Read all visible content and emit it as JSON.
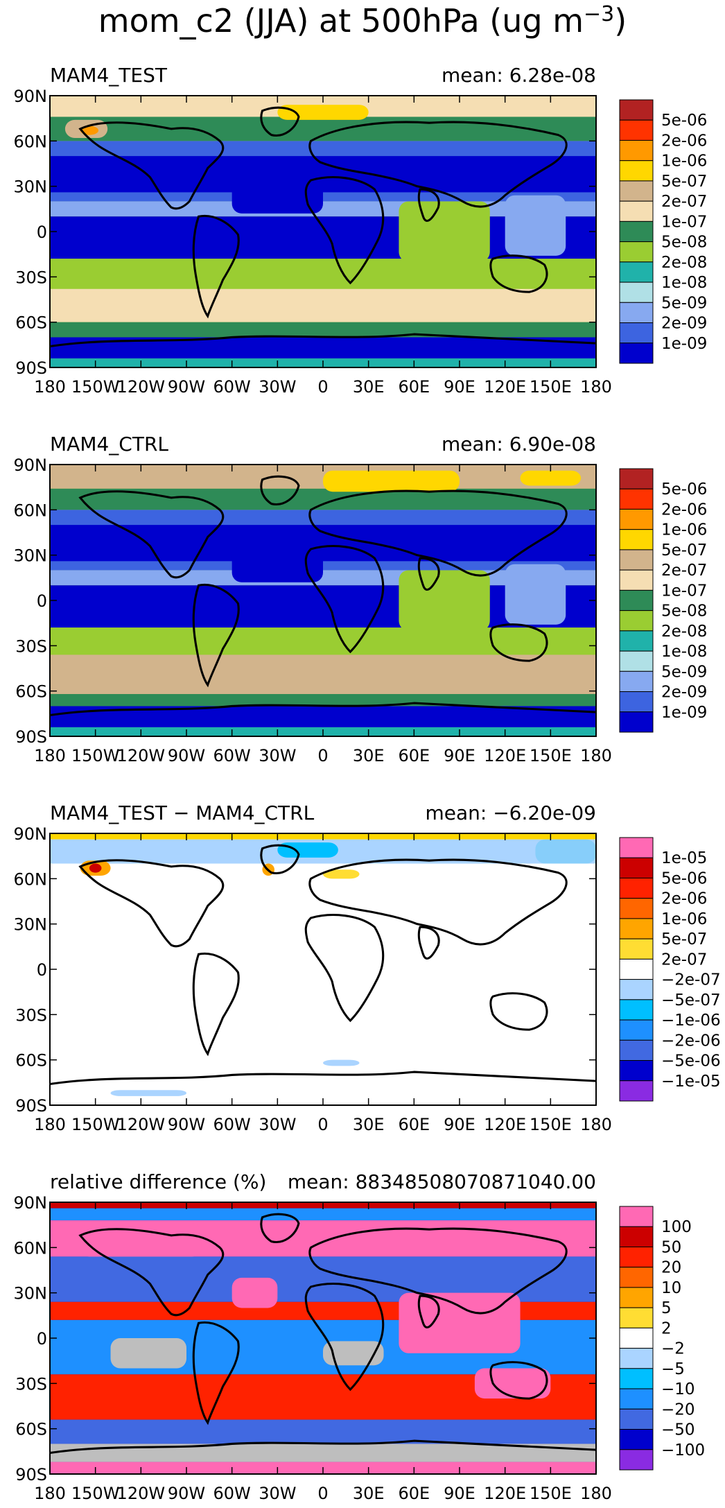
{
  "chart_data": {
    "type": "contour-map",
    "title": "mom_c2 (JJA) at 500hPa (ug m",
    "title_exponent": "−3",
    "title_close": ")",
    "x_ticks": [
      "180",
      "150W",
      "120W",
      "90W",
      "60W",
      "30W",
      "0",
      "30E",
      "60E",
      "90E",
      "120E",
      "150E",
      "180"
    ],
    "y_ticks": [
      "90N",
      "60N",
      "30N",
      "0",
      "30S",
      "60S",
      "90S"
    ],
    "panels": [
      {
        "name": "MAM4_TEST",
        "title_left": "MAM4_TEST",
        "title_right": "mean: 6.28e-08",
        "colorbar": {
          "colors": [
            "#b22222",
            "#ff3300",
            "#ff9900",
            "#ffd700",
            "#d2b48c",
            "#f5deb3",
            "#2e8b57",
            "#9acd32",
            "#20b2aa",
            "#b0e0e6",
            "#87a9f0",
            "#3d64e0",
            "#0000cd"
          ],
          "labels": [
            "5e-06",
            "2e-06",
            "1e-06",
            "5e-07",
            "2e-07",
            "1e-07",
            "5e-08",
            "2e-08",
            "1e-08",
            "5e-09",
            "2e-09",
            "1e-09"
          ]
        }
      },
      {
        "name": "MAM4_CTRL",
        "title_left": "MAM4_CTRL",
        "title_right": "mean: 6.90e-08",
        "colorbar": {
          "colors": [
            "#b22222",
            "#ff3300",
            "#ff9900",
            "#ffd700",
            "#d2b48c",
            "#f5deb3",
            "#2e8b57",
            "#9acd32",
            "#20b2aa",
            "#b0e0e6",
            "#87a9f0",
            "#3d64e0",
            "#0000cd"
          ],
          "labels": [
            "5e-06",
            "2e-06",
            "1e-06",
            "5e-07",
            "2e-07",
            "1e-07",
            "5e-08",
            "2e-08",
            "1e-08",
            "5e-09",
            "2e-09",
            "1e-09"
          ]
        }
      },
      {
        "name": "difference",
        "title_left": "MAM4_TEST − MAM4_CTRL",
        "title_right": "mean: −6.20e-09",
        "colorbar": {
          "colors": [
            "#ff69b4",
            "#cc0000",
            "#ff2200",
            "#ff6600",
            "#ffa500",
            "#ffdd33",
            "#ffffff",
            "#aad4ff",
            "#00bfff",
            "#1e90ff",
            "#4169e1",
            "#0000cd",
            "#8a2be2"
          ],
          "labels": [
            "1e-05",
            "5e-06",
            "2e-06",
            "1e-06",
            "5e-07",
            "2e-07",
            "−2e-07",
            "−5e-07",
            "−1e-06",
            "−2e-06",
            "−5e-06",
            "−1e-05"
          ]
        }
      },
      {
        "name": "relative-difference",
        "title_left": "relative difference (%)",
        "title_right": "mean: 88348508070871040.00",
        "colorbar": {
          "colors": [
            "#ff69b4",
            "#cc0000",
            "#ff2200",
            "#ff6600",
            "#ffa500",
            "#ffdd33",
            "#ffffff",
            "#aad4ff",
            "#00bfff",
            "#1e90ff",
            "#4169e1",
            "#0000cd",
            "#8a2be2"
          ],
          "labels": [
            "100",
            "50",
            "20",
            "10",
            "5",
            "2",
            "−2",
            "−5",
            "−10",
            "−20",
            "−50",
            "−100"
          ]
        }
      }
    ]
  }
}
